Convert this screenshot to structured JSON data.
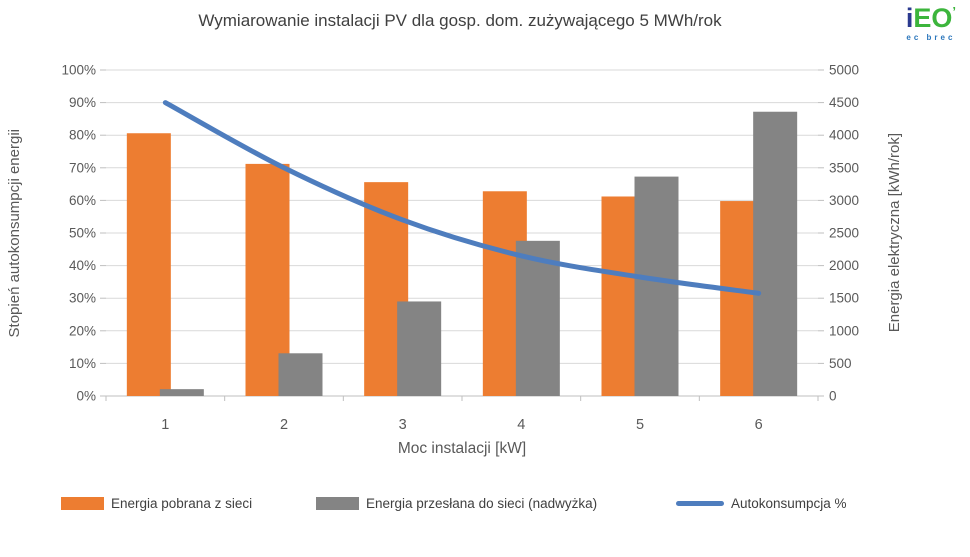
{
  "title": "Wymiarowanie instalacji PV dla gosp. dom. zużywającego 5 MWh/rok",
  "logo": {
    "i": "i",
    "eo": "EO",
    "mark": "’",
    "sub": "ec brec",
    "colors": {
      "i": "#2B3A8F",
      "eo": "#3CB53C",
      "mark": "#3CB53C",
      "sub": "#2C77BC"
    }
  },
  "chart_data": {
    "type": "combo-bar-line",
    "categories": [
      "1",
      "2",
      "3",
      "4",
      "5",
      "6"
    ],
    "xlabel": "Moc instalacji [kW]",
    "left_axis": {
      "label": "Stopień autokonsumpcji energii",
      "min": 0,
      "max": 100,
      "ticks": [
        "0%",
        "10%",
        "20%",
        "30%",
        "40%",
        "50%",
        "60%",
        "70%",
        "80%",
        "90%",
        "100%"
      ]
    },
    "right_axis": {
      "label": "Energia elektryczna [kWh/rok]",
      "min": 0,
      "max": 5000,
      "ticks": [
        "0",
        "500",
        "1000",
        "1500",
        "2000",
        "2500",
        "3000",
        "3500",
        "4000",
        "4500",
        "5000"
      ]
    },
    "grid": true,
    "legend_position": "bottom",
    "series": [
      {
        "name": "Energia pobrana z sieci",
        "type": "bar",
        "axis": "right",
        "color": "#ED7D31",
        "values": [
          4030,
          3560,
          3280,
          3140,
          3060,
          2990
        ]
      },
      {
        "name": "Energia przesłana do sieci (nadwyżka)",
        "type": "bar",
        "axis": "right",
        "color": "#848484",
        "values": [
          105,
          655,
          1450,
          2380,
          3365,
          4360
        ]
      },
      {
        "name": "Autokonsumpcja %",
        "type": "line",
        "axis": "left",
        "color": "#4E7DBE",
        "values": [
          90,
          70,
          54,
          43,
          36.5,
          31.5
        ]
      }
    ],
    "colors": {
      "gridline": "#D9D9D9",
      "axisline": "#BFBFBF",
      "tick_text": "#595959"
    }
  }
}
